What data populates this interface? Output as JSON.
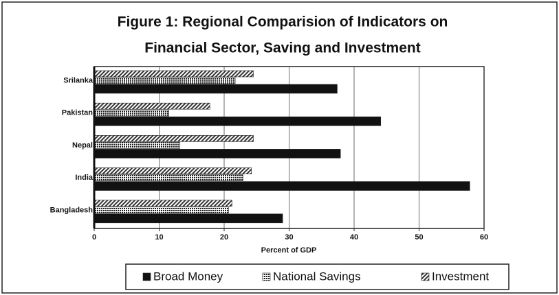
{
  "chart_data": {
    "type": "hbar",
    "title": [
      "Figure 1: Regional Comparision of Indicators on",
      "Financial Sector, Saving and Investment"
    ],
    "x_label": "Percent of GDP",
    "categories": [
      "Bangladesh",
      "India",
      "Nepal",
      "Pakistan",
      "Srilanka"
    ],
    "series": [
      {
        "name": "Broad Money",
        "color": "#111111",
        "pattern": "solid",
        "values": [
          29.0,
          57.8,
          37.9,
          44.1,
          37.4
        ]
      },
      {
        "name": "National Savings",
        "color": "#222222",
        "pattern": "crosshatch",
        "values": [
          20.7,
          22.9,
          13.2,
          11.5,
          21.7
        ]
      },
      {
        "name": "Investment",
        "color": "#333333",
        "pattern": "diagonal",
        "values": [
          21.2,
          24.2,
          24.5,
          17.8,
          24.5
        ]
      }
    ],
    "xlim": [
      0,
      60
    ],
    "xticks": [
      0,
      10,
      20,
      30,
      40,
      50,
      60
    ],
    "grid": true,
    "legend": "bottom"
  }
}
